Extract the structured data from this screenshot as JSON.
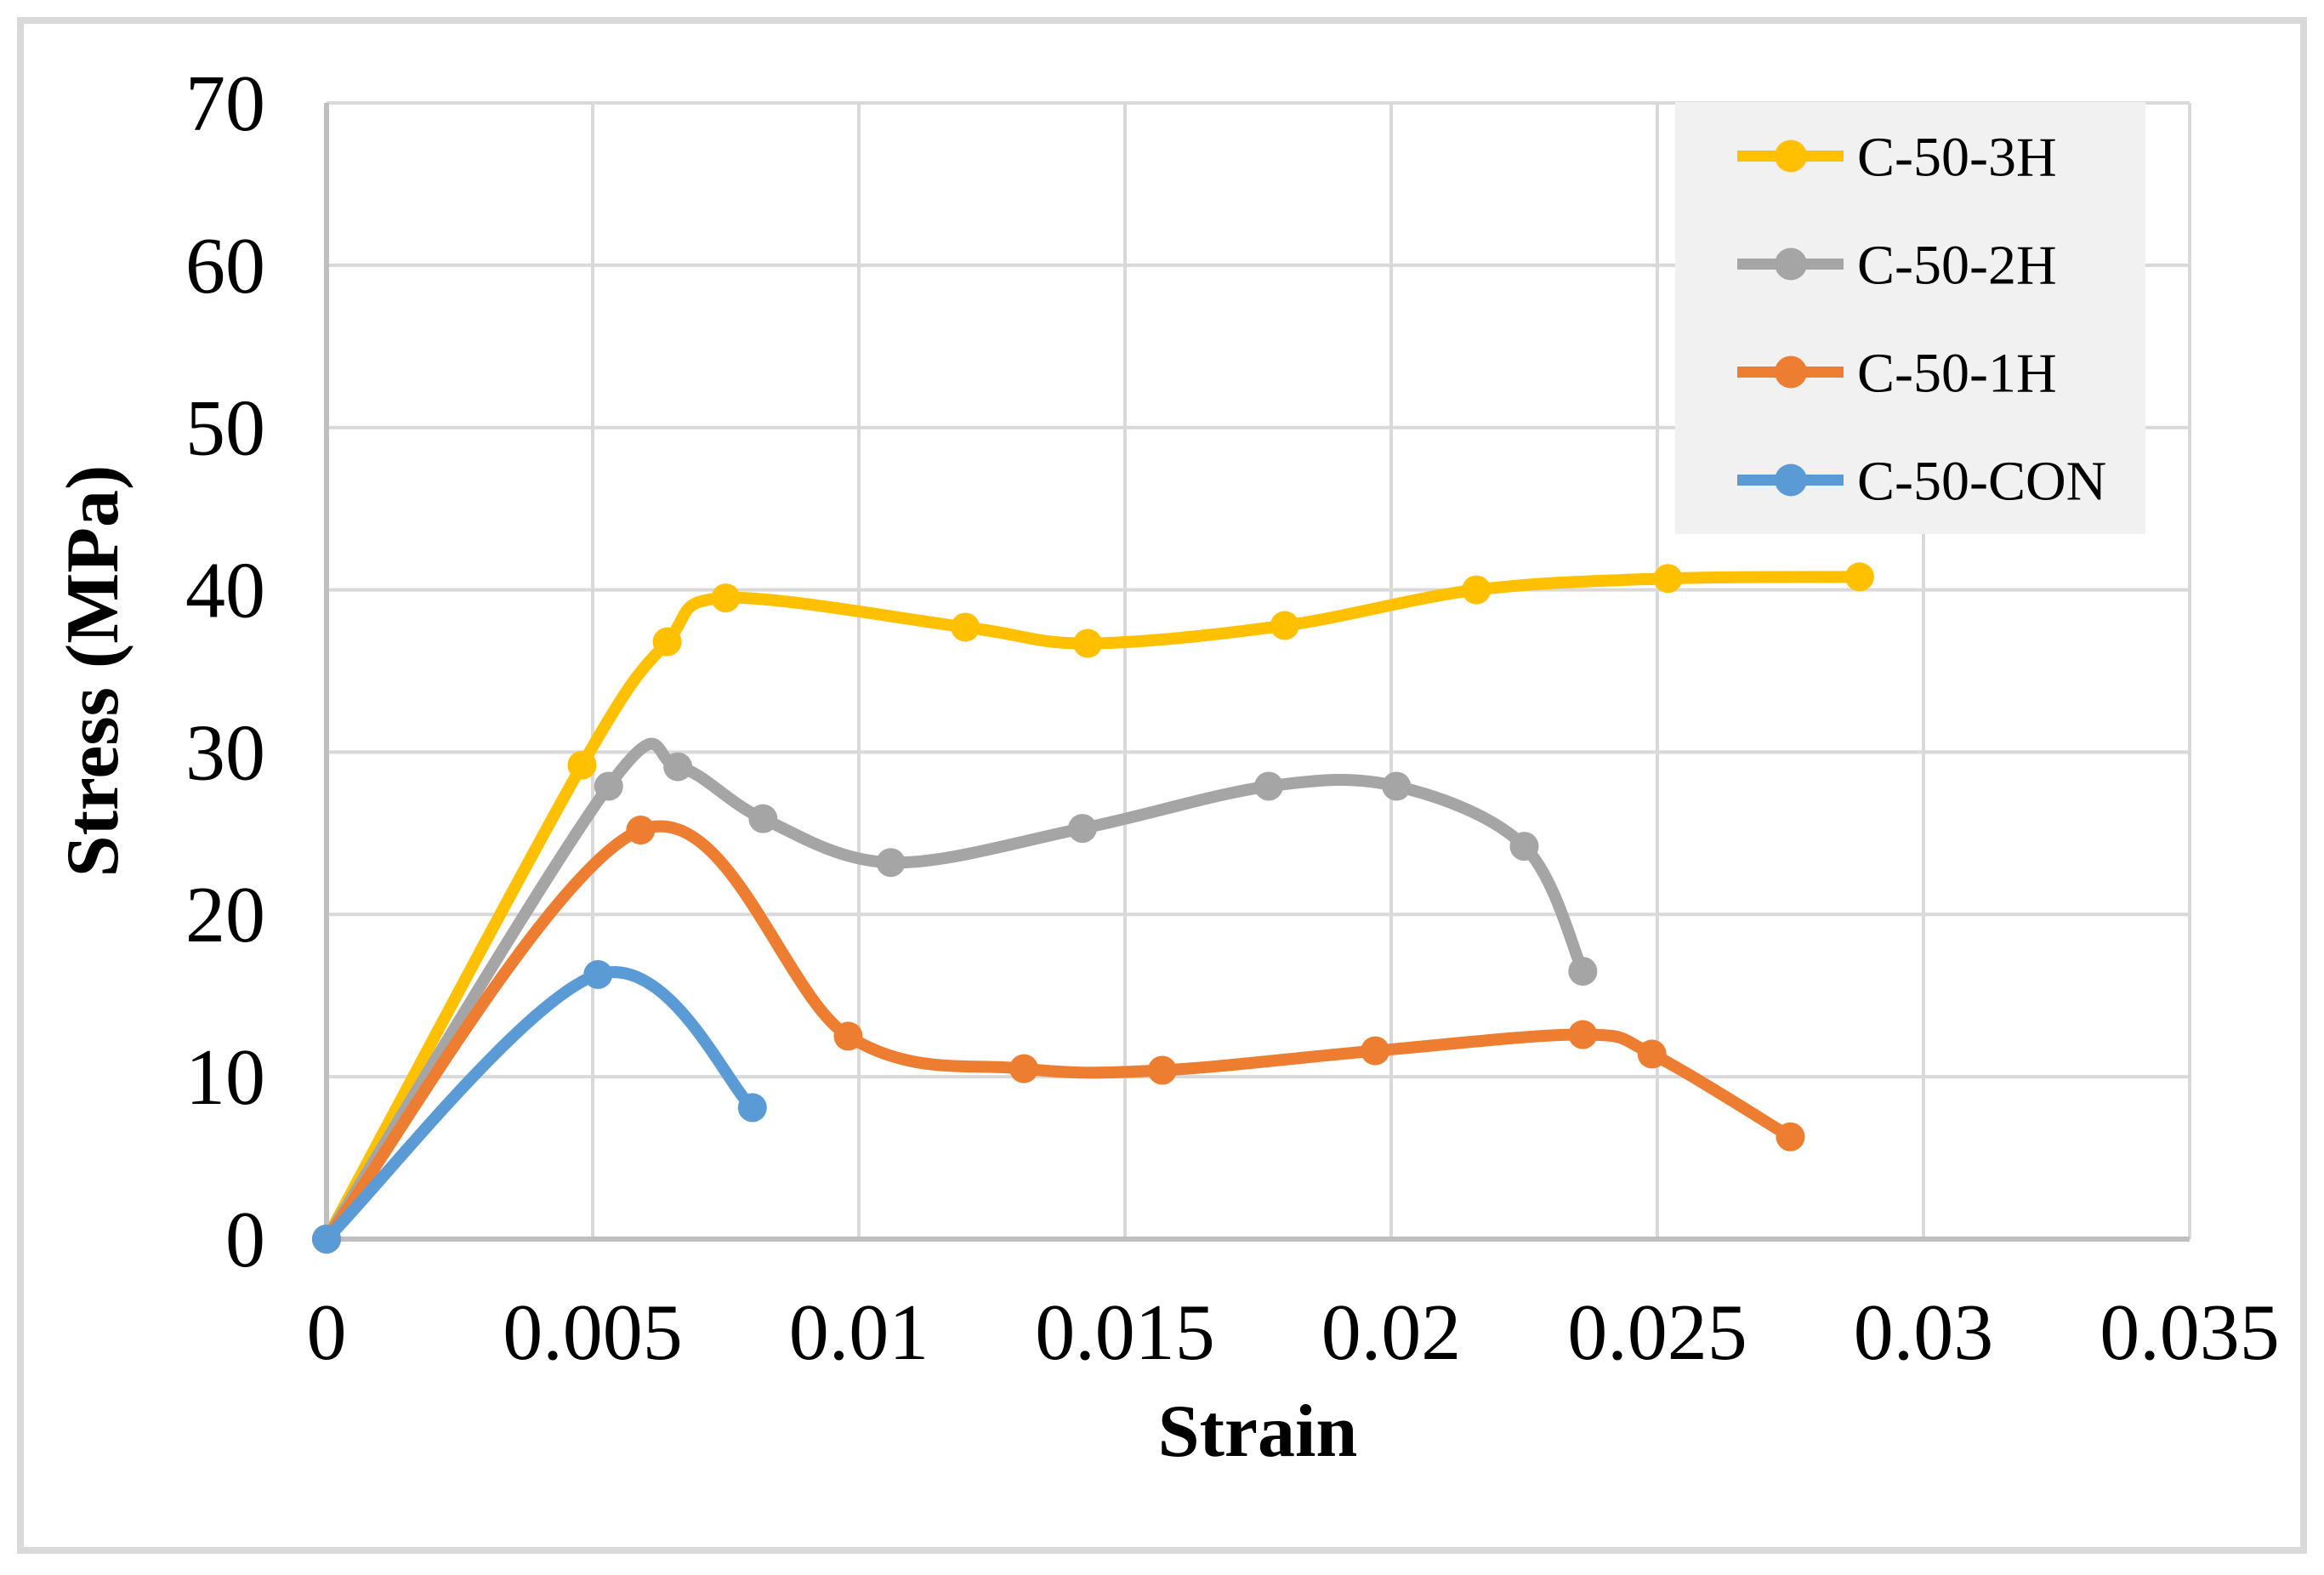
{
  "chart_data": {
    "type": "line",
    "title": "",
    "xlabel": "Strain",
    "ylabel": "Stress (MPa)",
    "xlim": [
      0,
      0.035
    ],
    "ylim": [
      0,
      70
    ],
    "grid": true,
    "legend_position": "upper right",
    "x_ticks": [
      0,
      0.005,
      0.01,
      0.015,
      0.02,
      0.025,
      0.03,
      0.035
    ],
    "x_tick_labels": [
      "0",
      "0.005",
      "0.01",
      "0.015",
      "0.02",
      "0.025",
      "0.03",
      "0.035"
    ],
    "y_ticks": [
      0,
      10,
      20,
      30,
      40,
      50,
      60,
      70
    ],
    "y_tick_labels": [
      "0",
      "10",
      "20",
      "30",
      "40",
      "50",
      "60",
      "70"
    ],
    "smooth_lines": true,
    "series": [
      {
        "name": "C-50-3H",
        "color": "#FFC000",
        "points": [
          [
            0,
            0
          ],
          [
            0.0048,
            29.2
          ],
          [
            0.0064,
            36.8
          ],
          [
            0.0075,
            39.5
          ],
          [
            0.012,
            37.7
          ],
          [
            0.0143,
            36.7
          ],
          [
            0.018,
            37.8
          ],
          [
            0.0216,
            40.0
          ],
          [
            0.0252,
            40.7
          ],
          [
            0.0288,
            40.8
          ]
        ]
      },
      {
        "name": "C-50-2H",
        "color": "#A5A5A5",
        "points": [
          [
            0,
            0
          ],
          [
            0.0053,
            27.9
          ],
          [
            0.0066,
            29.1
          ],
          [
            0.0082,
            25.9
          ],
          [
            0.0106,
            23.2
          ],
          [
            0.0142,
            25.3
          ],
          [
            0.0177,
            27.9
          ],
          [
            0.0201,
            27.9
          ],
          [
            0.0225,
            24.2
          ],
          [
            0.0236,
            16.5
          ]
        ]
      },
      {
        "name": "C-50-1H",
        "color": "#ED7D31",
        "points": [
          [
            0,
            0
          ],
          [
            0.0059,
            25.2
          ],
          [
            0.0098,
            12.5
          ],
          [
            0.0131,
            10.5
          ],
          [
            0.0157,
            10.4
          ],
          [
            0.0197,
            11.6
          ],
          [
            0.0236,
            12.6
          ],
          [
            0.0249,
            11.4
          ],
          [
            0.0275,
            6.3
          ]
        ]
      },
      {
        "name": "C-50-CON",
        "color": "#5B9BD5",
        "points": [
          [
            0,
            0
          ],
          [
            0.0051,
            16.3
          ],
          [
            0.008,
            8.1
          ]
        ]
      }
    ]
  },
  "styling": {
    "grid_color": "#D9D9D9",
    "axis_color": "#BFBFBF",
    "outer_border_color": "#D9D9D9",
    "legend_background": "#F1F1F1",
    "background": "#FFFFFF",
    "text_color": "#000000"
  }
}
